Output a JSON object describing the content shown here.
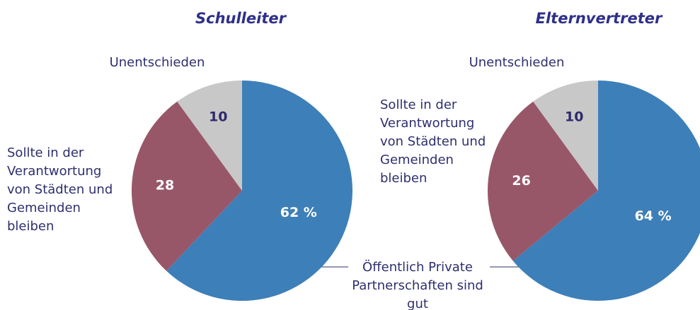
{
  "center_label": "Öffentlich Private Partnerschaften sind gut",
  "chart_data": [
    {
      "type": "pie",
      "title": "Schulleiter",
      "categories": [
        null,
        "Sollte in der Verantwortung von Städten und Gemeinden bleiben",
        "Unentschieden"
      ],
      "values": [
        62,
        28,
        10
      ],
      "value_labels": [
        "62 %",
        "28",
        "10"
      ],
      "colors": [
        "#3d7fb8",
        "#985769",
        "#c8c8c8"
      ]
    },
    {
      "type": "pie",
      "title": "Elternvertreter",
      "categories": [
        null,
        "Sollte in der Verantwortung von Städten und Gemeinden bleiben",
        "Unentschieden"
      ],
      "values": [
        64,
        26,
        10
      ],
      "value_labels": [
        "64 %",
        "26",
        "10"
      ],
      "colors": [
        "#3d7fb8",
        "#985769",
        "#c8c8c8"
      ]
    }
  ]
}
